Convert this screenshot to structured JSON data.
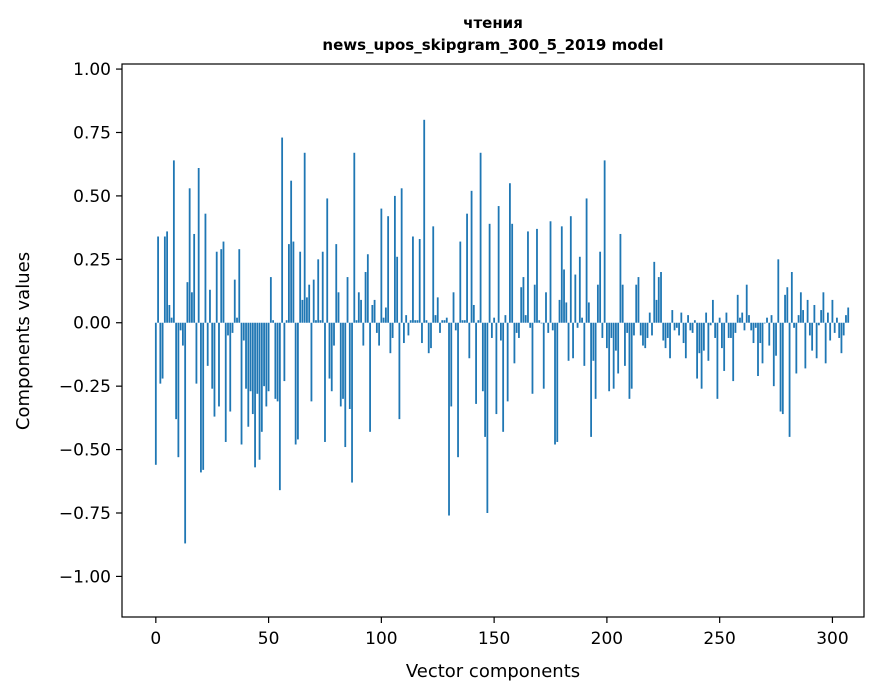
{
  "chart_data": {
    "type": "bar",
    "title_line1": "чтения",
    "title_line2": "news_upos_skipgram_300_5_2019 model",
    "xlabel": "Vector components",
    "ylabel": "Components values",
    "xlim": [
      -15,
      314
    ],
    "ylim": [
      -1.16,
      1.02
    ],
    "xticks": [
      0,
      50,
      100,
      150,
      200,
      250,
      300
    ],
    "xtick_labels": [
      "0",
      "50",
      "100",
      "150",
      "200",
      "250",
      "300"
    ],
    "yticks": [
      1.0,
      0.75,
      0.5,
      0.25,
      0.0,
      -0.25,
      -0.5,
      -0.75,
      -1.0
    ],
    "ytick_labels": [
      "1.00",
      "0.75",
      "0.50",
      "0.25",
      "0.00",
      "−0.25",
      "−0.50",
      "−0.75",
      "−1.00"
    ],
    "bar_color": "#1f77b4",
    "values": [
      -0.56,
      0.34,
      -0.24,
      -0.22,
      0.34,
      0.36,
      0.07,
      0.02,
      0.64,
      -0.38,
      -0.53,
      -0.03,
      -0.09,
      -0.87,
      0.16,
      0.53,
      0.12,
      0.35,
      -0.24,
      0.61,
      -0.59,
      -0.58,
      0.43,
      -0.17,
      0.13,
      -0.26,
      -0.37,
      0.28,
      -0.33,
      0.29,
      0.32,
      -0.47,
      -0.05,
      -0.35,
      -0.04,
      0.17,
      0.02,
      0.29,
      -0.48,
      -0.07,
      -0.26,
      -0.41,
      -0.27,
      -0.36,
      -0.57,
      -0.28,
      -0.54,
      -0.43,
      -0.25,
      -0.33,
      -0.27,
      0.18,
      0.01,
      -0.3,
      -0.31,
      -0.66,
      0.73,
      -0.23,
      0.01,
      0.31,
      0.56,
      0.32,
      -0.48,
      -0.46,
      0.28,
      0.09,
      0.67,
      0.1,
      0.15,
      -0.31,
      0.17,
      0.01,
      0.25,
      0.01,
      0.28,
      -0.47,
      0.49,
      -0.22,
      -0.27,
      -0.09,
      0.31,
      0.12,
      -0.33,
      -0.3,
      -0.49,
      0.18,
      -0.34,
      -0.63,
      0.67,
      0.01,
      0.12,
      0.09,
      -0.09,
      0.2,
      0.27,
      -0.43,
      0.07,
      0.09,
      -0.04,
      -0.09,
      0.45,
      0.02,
      0.06,
      0.42,
      -0.12,
      -0.06,
      0.5,
      0.26,
      -0.38,
      0.53,
      -0.08,
      0.03,
      -0.05,
      0.01,
      0.34,
      0.01,
      0.01,
      0.33,
      -0.08,
      0.8,
      0.01,
      -0.12,
      -0.1,
      0.38,
      0.03,
      0.1,
      -0.04,
      0.01,
      0.01,
      0.02,
      -0.76,
      -0.33,
      0.12,
      -0.03,
      -0.53,
      0.32,
      0.01,
      0.01,
      0.43,
      -0.14,
      0.52,
      0.07,
      -0.32,
      0.01,
      0.67,
      -0.27,
      -0.45,
      -0.75,
      0.39,
      -0.06,
      0.02,
      -0.36,
      0.46,
      -0.07,
      -0.43,
      0.03,
      -0.31,
      0.55,
      0.39,
      -0.16,
      -0.04,
      -0.06,
      0.14,
      0.18,
      0.03,
      0.36,
      -0.02,
      -0.28,
      0.15,
      0.37,
      0.01,
      0.0,
      -0.26,
      0.12,
      -0.04,
      0.4,
      -0.03,
      -0.48,
      -0.47,
      0.09,
      0.38,
      0.21,
      0.08,
      -0.15,
      0.42,
      -0.14,
      0.19,
      -0.02,
      0.26,
      0.02,
      -0.17,
      0.49,
      0.08,
      -0.45,
      -0.15,
      -0.3,
      0.15,
      0.28,
      -0.06,
      0.64,
      -0.1,
      -0.27,
      -0.06,
      -0.26,
      -0.11,
      -0.2,
      0.35,
      0.15,
      -0.17,
      -0.04,
      -0.3,
      -0.26,
      -0.05,
      0.15,
      0.18,
      -0.05,
      -0.09,
      -0.1,
      -0.06,
      0.04,
      -0.05,
      0.24,
      0.09,
      0.18,
      0.2,
      -0.07,
      -0.1,
      -0.06,
      -0.14,
      0.05,
      -0.03,
      -0.02,
      -0.05,
      0.04,
      -0.08,
      -0.14,
      0.03,
      -0.03,
      -0.04,
      0.01,
      -0.22,
      -0.12,
      -0.26,
      -0.11,
      0.04,
      -0.15,
      -0.01,
      0.09,
      -0.06,
      -0.3,
      0.02,
      -0.1,
      -0.19,
      0.04,
      -0.06,
      -0.06,
      -0.23,
      -0.04,
      0.11,
      0.02,
      0.04,
      -0.03,
      0.15,
      0.03,
      -0.03,
      -0.08,
      -0.02,
      -0.21,
      -0.08,
      -0.16,
      0.0,
      0.02,
      -0.09,
      0.03,
      -0.25,
      -0.13,
      0.25,
      -0.35,
      -0.36,
      0.11,
      0.14,
      -0.45,
      0.2,
      -0.02,
      -0.2,
      0.03,
      0.12,
      0.05,
      -0.18,
      0.09,
      -0.05,
      -0.11,
      0.07,
      -0.14,
      -0.01,
      0.05,
      0.12,
      -0.16,
      0.04,
      -0.07,
      0.09,
      -0.04,
      0.02,
      -0.06,
      -0.12,
      -0.05,
      0.03,
      0.06
    ]
  }
}
